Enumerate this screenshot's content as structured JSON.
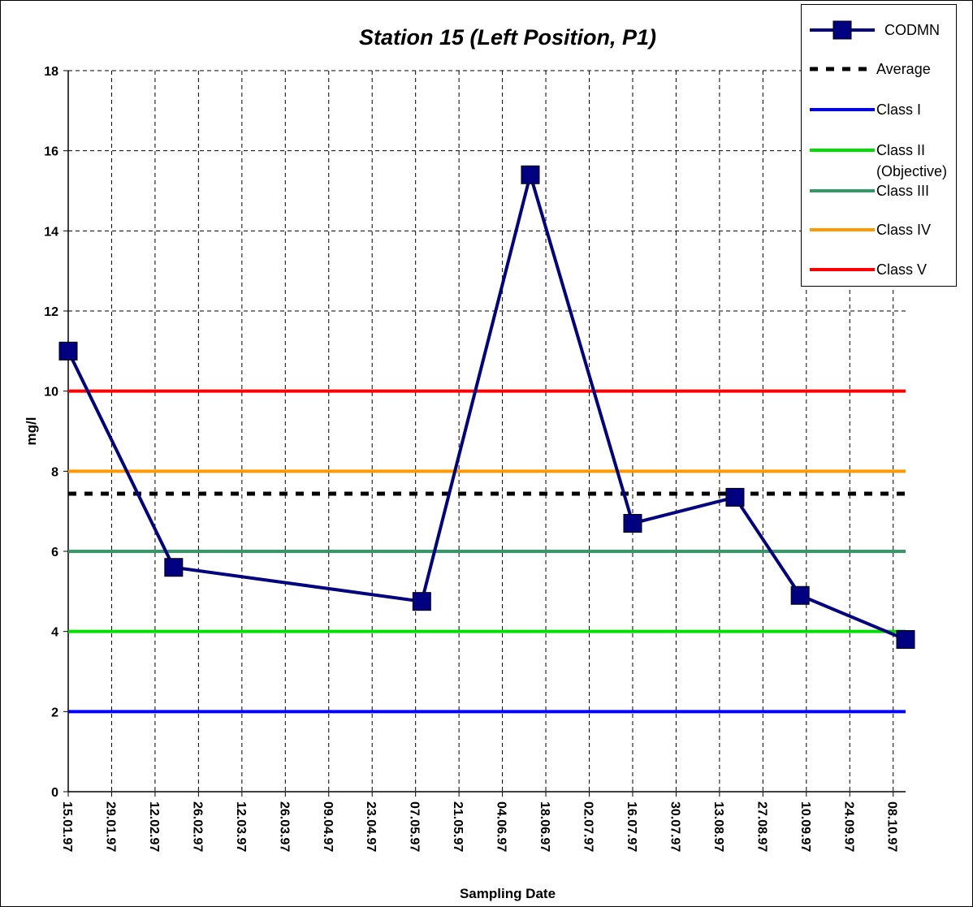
{
  "chart_data": {
    "type": "line",
    "title": "Station 15 (Left Position, P1)",
    "x_label": "Sampling Date",
    "y_label": "mg/l",
    "x": [
      "15.01.97",
      "18.02.97",
      "09.05.97",
      "13.06.97",
      "16.07.97",
      "18.08.97",
      "08.09.97",
      "12.10.97"
    ],
    "series": [
      {
        "name": "CODMN",
        "color": "#000080",
        "marker": "square",
        "line_style": "solid",
        "values": [
          11,
          5.6,
          4.75,
          15.4,
          6.7,
          7.35,
          4.9,
          3.8
        ]
      },
      {
        "name": "Average",
        "color": "#000000",
        "line_style": "dashed",
        "values": [
          7.44,
          7.44,
          7.44,
          7.44,
          7.44,
          7.44,
          7.44,
          7.44
        ]
      },
      {
        "name": "Class I",
        "color": "#0000ff",
        "line_style": "solid",
        "values": [
          2,
          2,
          2,
          2,
          2,
          2,
          2,
          2
        ]
      },
      {
        "name": "Class II (Objective)",
        "color": "#00e000",
        "line_style": "solid",
        "values": [
          4,
          4,
          4,
          4,
          4,
          4,
          4,
          4
        ]
      },
      {
        "name": "Class III",
        "color": "#339966",
        "line_style": "solid",
        "values": [
          6,
          6,
          6,
          6,
          6,
          6,
          6,
          6
        ]
      },
      {
        "name": "Class IV",
        "color": "#ff9900",
        "line_style": "solid",
        "values": [
          8,
          8,
          8,
          8,
          8,
          8,
          8,
          8
        ]
      },
      {
        "name": "Class V",
        "color": "#ff0000",
        "line_style": "solid",
        "values": [
          10,
          10,
          10,
          10,
          10,
          10,
          10,
          10
        ]
      }
    ],
    "xlim": [
      "15.01.97",
      "12.10.97"
    ],
    "xticks": [
      "15.01.97",
      "29.01.97",
      "12.02.97",
      "26.02.97",
      "12.03.97",
      "26.03.97",
      "09.04.97",
      "23.04.97",
      "07.05.97",
      "21.05.97",
      "04.06.97",
      "18.06.97",
      "02.07.97",
      "16.07.97",
      "30.07.97",
      "13.08.97",
      "27.08.97",
      "10.09.97",
      "24.09.97",
      "08.10.97"
    ],
    "ylim": [
      0,
      18
    ],
    "yticks": [
      0,
      2,
      4,
      6,
      8,
      10,
      12,
      14,
      16,
      18
    ],
    "grid": true,
    "legend": "top-right"
  }
}
